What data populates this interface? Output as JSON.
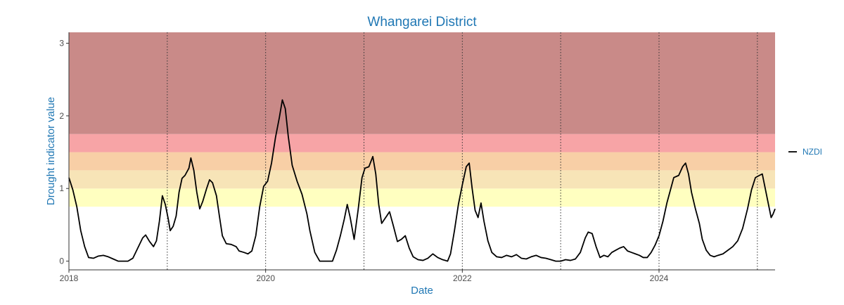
{
  "chart_data": {
    "type": "line",
    "title": "Whangarei District",
    "xlabel": "Date",
    "ylabel": "Drought indicator value",
    "xlim": [
      2018.0,
      2025.18
    ],
    "ylim": [
      -0.12,
      3.15
    ],
    "x_ticks": [
      2018,
      2020,
      2022,
      2024
    ],
    "y_ticks": [
      0,
      1,
      2,
      3
    ],
    "x_tick_labels": [
      "2018",
      "2020",
      "2022",
      "2024"
    ],
    "y_tick_labels": [
      "0",
      "1",
      "2",
      "3"
    ],
    "year_lines": [
      2019,
      2020,
      2021,
      2022,
      2023,
      2024,
      2025
    ],
    "grid": false,
    "legend_position": "right",
    "bands": [
      {
        "from": 0.75,
        "to": 1.0,
        "color": "#ffffc0"
      },
      {
        "from": 1.0,
        "to": 1.25,
        "color": "#f7e4b7"
      },
      {
        "from": 1.25,
        "to": 1.5,
        "color": "#f8cfa6"
      },
      {
        "from": 1.5,
        "to": 1.75,
        "color": "#f7a4a6"
      },
      {
        "from": 1.75,
        "to": 3.15,
        "color": "#c98a88"
      }
    ],
    "series": [
      {
        "name": "NZDI",
        "color": "#000000",
        "points": [
          [
            2018.0,
            1.15
          ],
          [
            2018.04,
            0.98
          ],
          [
            2018.08,
            0.75
          ],
          [
            2018.12,
            0.42
          ],
          [
            2018.16,
            0.2
          ],
          [
            2018.2,
            0.05
          ],
          [
            2018.25,
            0.04
          ],
          [
            2018.3,
            0.07
          ],
          [
            2018.35,
            0.08
          ],
          [
            2018.4,
            0.06
          ],
          [
            2018.45,
            0.03
          ],
          [
            2018.5,
            0.0
          ],
          [
            2018.55,
            0.0
          ],
          [
            2018.6,
            0.0
          ],
          [
            2018.65,
            0.04
          ],
          [
            2018.7,
            0.18
          ],
          [
            2018.75,
            0.32
          ],
          [
            2018.78,
            0.36
          ],
          [
            2018.82,
            0.27
          ],
          [
            2018.86,
            0.2
          ],
          [
            2018.89,
            0.28
          ],
          [
            2018.92,
            0.55
          ],
          [
            2018.95,
            0.9
          ],
          [
            2018.98,
            0.78
          ],
          [
            2019.01,
            0.58
          ],
          [
            2019.03,
            0.42
          ],
          [
            2019.06,
            0.48
          ],
          [
            2019.09,
            0.62
          ],
          [
            2019.12,
            0.95
          ],
          [
            2019.15,
            1.14
          ],
          [
            2019.18,
            1.18
          ],
          [
            2019.22,
            1.28
          ],
          [
            2019.24,
            1.42
          ],
          [
            2019.27,
            1.25
          ],
          [
            2019.3,
            0.95
          ],
          [
            2019.33,
            0.72
          ],
          [
            2019.36,
            0.82
          ],
          [
            2019.4,
            1.0
          ],
          [
            2019.43,
            1.12
          ],
          [
            2019.46,
            1.08
          ],
          [
            2019.5,
            0.9
          ],
          [
            2019.53,
            0.62
          ],
          [
            2019.56,
            0.35
          ],
          [
            2019.6,
            0.24
          ],
          [
            2019.65,
            0.23
          ],
          [
            2019.7,
            0.2
          ],
          [
            2019.73,
            0.14
          ],
          [
            2019.78,
            0.12
          ],
          [
            2019.82,
            0.1
          ],
          [
            2019.86,
            0.14
          ],
          [
            2019.9,
            0.35
          ],
          [
            2019.94,
            0.75
          ],
          [
            2019.98,
            1.03
          ],
          [
            2020.02,
            1.1
          ],
          [
            2020.06,
            1.35
          ],
          [
            2020.1,
            1.7
          ],
          [
            2020.14,
            1.98
          ],
          [
            2020.17,
            2.22
          ],
          [
            2020.2,
            2.1
          ],
          [
            2020.23,
            1.72
          ],
          [
            2020.27,
            1.32
          ],
          [
            2020.32,
            1.1
          ],
          [
            2020.37,
            0.92
          ],
          [
            2020.42,
            0.65
          ],
          [
            2020.45,
            0.42
          ],
          [
            2020.5,
            0.12
          ],
          [
            2020.55,
            0.0
          ],
          [
            2020.62,
            0.0
          ],
          [
            2020.68,
            0.0
          ],
          [
            2020.72,
            0.15
          ],
          [
            2020.76,
            0.35
          ],
          [
            2020.8,
            0.58
          ],
          [
            2020.83,
            0.78
          ],
          [
            2020.86,
            0.6
          ],
          [
            2020.9,
            0.3
          ],
          [
            2020.94,
            0.7
          ],
          [
            2020.98,
            1.15
          ],
          [
            2021.01,
            1.28
          ],
          [
            2021.05,
            1.3
          ],
          [
            2021.09,
            1.44
          ],
          [
            2021.12,
            1.2
          ],
          [
            2021.15,
            0.78
          ],
          [
            2021.18,
            0.52
          ],
          [
            2021.22,
            0.6
          ],
          [
            2021.26,
            0.68
          ],
          [
            2021.3,
            0.48
          ],
          [
            2021.34,
            0.27
          ],
          [
            2021.38,
            0.3
          ],
          [
            2021.42,
            0.35
          ],
          [
            2021.46,
            0.18
          ],
          [
            2021.5,
            0.06
          ],
          [
            2021.55,
            0.02
          ],
          [
            2021.6,
            0.01
          ],
          [
            2021.65,
            0.04
          ],
          [
            2021.7,
            0.1
          ],
          [
            2021.75,
            0.05
          ],
          [
            2021.8,
            0.02
          ],
          [
            2021.85,
            0.0
          ],
          [
            2021.88,
            0.1
          ],
          [
            2021.92,
            0.42
          ],
          [
            2021.96,
            0.78
          ],
          [
            2022.0,
            1.05
          ],
          [
            2022.04,
            1.3
          ],
          [
            2022.07,
            1.35
          ],
          [
            2022.1,
            1.0
          ],
          [
            2022.13,
            0.7
          ],
          [
            2022.16,
            0.6
          ],
          [
            2022.19,
            0.8
          ],
          [
            2022.22,
            0.55
          ],
          [
            2022.26,
            0.28
          ],
          [
            2022.3,
            0.12
          ],
          [
            2022.35,
            0.06
          ],
          [
            2022.4,
            0.05
          ],
          [
            2022.45,
            0.08
          ],
          [
            2022.5,
            0.06
          ],
          [
            2022.55,
            0.09
          ],
          [
            2022.6,
            0.04
          ],
          [
            2022.65,
            0.03
          ],
          [
            2022.7,
            0.06
          ],
          [
            2022.75,
            0.08
          ],
          [
            2022.8,
            0.05
          ],
          [
            2022.85,
            0.04
          ],
          [
            2022.9,
            0.02
          ],
          [
            2022.95,
            0.0
          ],
          [
            2023.0,
            0.0
          ],
          [
            2023.05,
            0.02
          ],
          [
            2023.1,
            0.01
          ],
          [
            2023.15,
            0.03
          ],
          [
            2023.2,
            0.12
          ],
          [
            2023.25,
            0.32
          ],
          [
            2023.28,
            0.4
          ],
          [
            2023.32,
            0.38
          ],
          [
            2023.36,
            0.2
          ],
          [
            2023.4,
            0.05
          ],
          [
            2023.44,
            0.08
          ],
          [
            2023.48,
            0.06
          ],
          [
            2023.52,
            0.12
          ],
          [
            2023.56,
            0.15
          ],
          [
            2023.6,
            0.18
          ],
          [
            2023.64,
            0.2
          ],
          [
            2023.68,
            0.14
          ],
          [
            2023.72,
            0.12
          ],
          [
            2023.76,
            0.1
          ],
          [
            2023.8,
            0.08
          ],
          [
            2023.84,
            0.05
          ],
          [
            2023.88,
            0.05
          ],
          [
            2023.92,
            0.12
          ],
          [
            2023.96,
            0.22
          ],
          [
            2024.0,
            0.35
          ],
          [
            2024.04,
            0.55
          ],
          [
            2024.08,
            0.8
          ],
          [
            2024.12,
            1.0
          ],
          [
            2024.15,
            1.15
          ],
          [
            2024.2,
            1.18
          ],
          [
            2024.24,
            1.3
          ],
          [
            2024.27,
            1.35
          ],
          [
            2024.3,
            1.2
          ],
          [
            2024.33,
            0.95
          ],
          [
            2024.37,
            0.72
          ],
          [
            2024.41,
            0.52
          ],
          [
            2024.44,
            0.3
          ],
          [
            2024.48,
            0.15
          ],
          [
            2024.52,
            0.08
          ],
          [
            2024.56,
            0.06
          ],
          [
            2024.6,
            0.08
          ],
          [
            2024.65,
            0.1
          ],
          [
            2024.7,
            0.15
          ],
          [
            2024.75,
            0.2
          ],
          [
            2024.8,
            0.28
          ],
          [
            2024.85,
            0.45
          ],
          [
            2024.9,
            0.72
          ],
          [
            2024.94,
            0.98
          ],
          [
            2024.98,
            1.15
          ],
          [
            2025.02,
            1.18
          ],
          [
            2025.05,
            1.2
          ],
          [
            2025.08,
            1.0
          ],
          [
            2025.11,
            0.8
          ],
          [
            2025.14,
            0.6
          ],
          [
            2025.16,
            0.65
          ],
          [
            2025.18,
            0.72
          ]
        ]
      }
    ]
  }
}
